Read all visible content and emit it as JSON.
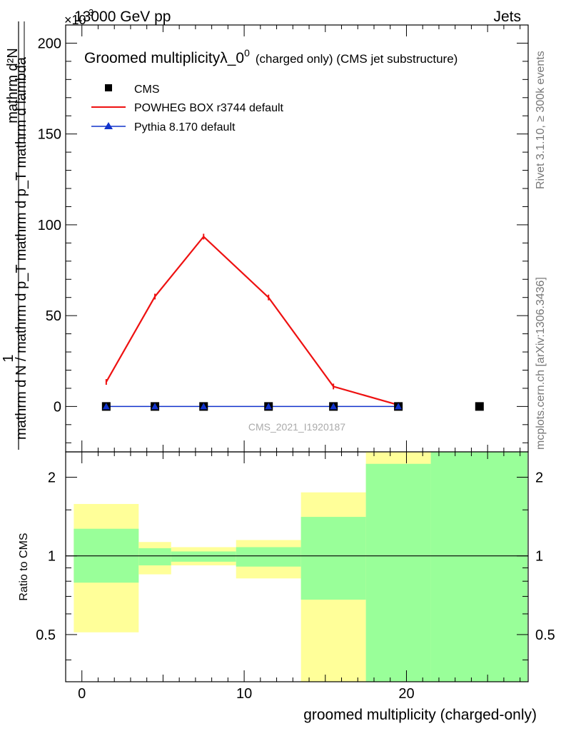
{
  "header": {
    "energy_label": "13000 GeV pp",
    "category_label": "Jets",
    "exponent_label": "×10",
    "exponent_power": "3"
  },
  "side_labels": {
    "rivet": "Rivet 3.1.10, ≥ 300k events",
    "mcplots": "mcplots.cern.ch [arXiv:1306.3436]"
  },
  "chart_data": [
    {
      "type": "line",
      "title_main": "Groomed multiplicityλ_0",
      "title_sup": "0",
      "title_tail": "(charged only) (CMS jet substructure)",
      "ylabel_numerator": "mathrm d²N",
      "ylabel_denominator": "mathrm d N / mathrm d p_T mathrm d p_T mathrm d lambda",
      "ylabel_prefix": "1",
      "watermark": "CMS_2021_I1920187",
      "xlim": [
        -1,
        27.5
      ],
      "ylim": [
        -25,
        210
      ],
      "yticks": [
        0,
        50,
        100,
        150,
        200
      ],
      "legend_position": "top-left",
      "series": [
        {
          "name": "CMS",
          "color": "#000000",
          "marker": "square",
          "x": [
            1.5,
            4.5,
            7.5,
            11.5,
            15.5,
            19.5,
            24.5
          ],
          "y": [
            0,
            0,
            0,
            0,
            0,
            0,
            0
          ]
        },
        {
          "name": "POWHEG BOX r3744 default",
          "color": "#ee1111",
          "marker": "none",
          "x": [
            1.5,
            4.5,
            7.5,
            11.5,
            15.5,
            19.5
          ],
          "y": [
            13.5,
            60.5,
            93.5,
            60,
            11,
            0.8
          ]
        },
        {
          "name": "Pythia 8.170 default",
          "color": "#1133cc",
          "marker": "triangle",
          "x": [
            1.5,
            4.5,
            7.5,
            11.5,
            15.5,
            19.5
          ],
          "y": [
            0,
            0,
            0,
            0,
            0,
            0
          ]
        }
      ]
    },
    {
      "type": "area",
      "ylabel": "Ratio to CMS",
      "xlabel": "groomed multiplicity (charged-only)",
      "xticks": [
        0,
        10,
        20
      ],
      "yticks": [
        0.5,
        1,
        2
      ],
      "ytick_labels": [
        "0.5",
        "1",
        "2"
      ],
      "y_scale": "log",
      "ylim": [
        0.33,
        2.5
      ],
      "bins": [
        {
          "x0": -0.5,
          "x1": 3.5,
          "outer": [
            0.51,
            1.58
          ],
          "inner": [
            0.79,
            1.27
          ]
        },
        {
          "x0": 3.5,
          "x1": 5.5,
          "outer": [
            0.85,
            1.13
          ],
          "inner": [
            0.92,
            1.07
          ]
        },
        {
          "x0": 5.5,
          "x1": 9.5,
          "outer": [
            0.92,
            1.08
          ],
          "inner": [
            0.95,
            1.04
          ]
        },
        {
          "x0": 9.5,
          "x1": 13.5,
          "outer": [
            0.82,
            1.15
          ],
          "inner": [
            0.91,
            1.08
          ]
        },
        {
          "x0": 13.5,
          "x1": 17.5,
          "outer": [
            0.33,
            1.75
          ],
          "inner": [
            0.68,
            1.41
          ]
        },
        {
          "x0": 17.5,
          "x1": 21.5,
          "outer": [
            0.33,
            2.5
          ],
          "inner": [
            0.33,
            2.25
          ]
        },
        {
          "x0": 21.5,
          "x1": 27.5,
          "outer": [
            0.33,
            2.5
          ],
          "inner": [
            0.33,
            2.5
          ]
        }
      ],
      "reference_line": 1,
      "colors": {
        "outer": "#ffff99",
        "inner": "#99ff99"
      }
    }
  ]
}
